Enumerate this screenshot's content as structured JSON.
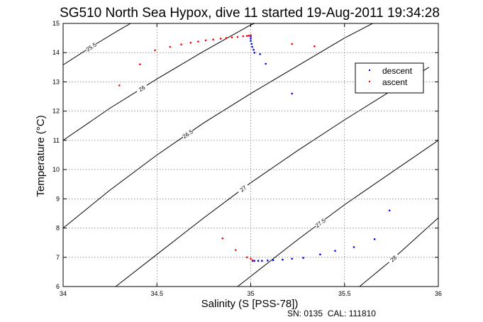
{
  "chart_data": {
    "type": "scatter",
    "title": "SG510 North Sea Hypox, dive 11 started 19-Aug-2011 19:34:28",
    "xlabel": "Salinity (S [PSS-78])",
    "ylabel": "Temperature (°C)",
    "xlim": [
      34,
      36
    ],
    "ylim": [
      6,
      15
    ],
    "xticks": [
      "34",
      "34.5",
      "35",
      "35.5",
      "36"
    ],
    "yticks": [
      "6",
      "7",
      "8",
      "9",
      "10",
      "11",
      "12",
      "13",
      "14",
      "15"
    ],
    "grid": true,
    "legend_position": "top-right",
    "footer": "SN: 0135  CAL: 111810",
    "contours": [
      {
        "label": "25.5",
        "points": [
          [
            34.0,
            13.58
          ],
          [
            34.15,
            14.2
          ],
          [
            34.3,
            14.78
          ],
          [
            34.36,
            15.0
          ]
        ]
      },
      {
        "label": "26",
        "points": [
          [
            34.0,
            11.0
          ],
          [
            34.25,
            12.1
          ],
          [
            34.5,
            13.1
          ],
          [
            34.75,
            14.05
          ],
          [
            35.0,
            14.95
          ],
          [
            35.02,
            15.0
          ]
        ]
      },
      {
        "label": "26.5",
        "points": [
          [
            34.0,
            8.0
          ],
          [
            34.25,
            9.3
          ],
          [
            34.5,
            10.5
          ],
          [
            34.75,
            11.6
          ],
          [
            35.0,
            12.6
          ],
          [
            35.25,
            13.55
          ],
          [
            35.5,
            14.5
          ],
          [
            35.65,
            15.0
          ]
        ]
      },
      {
        "label": "27",
        "points": [
          [
            34.28,
            6.0
          ],
          [
            34.5,
            7.1
          ],
          [
            34.75,
            8.35
          ],
          [
            35.0,
            9.55
          ],
          [
            35.25,
            10.65
          ],
          [
            35.5,
            11.7
          ],
          [
            35.75,
            12.7
          ],
          [
            35.95,
            13.5
          ]
        ]
      },
      {
        "label": "27.5",
        "points": [
          [
            34.93,
            6.0
          ],
          [
            35.0,
            6.35
          ],
          [
            35.25,
            7.6
          ],
          [
            35.5,
            8.8
          ],
          [
            35.75,
            9.9
          ],
          [
            36.0,
            11.0
          ]
        ]
      },
      {
        "label": "28",
        "points": [
          [
            35.58,
            6.0
          ],
          [
            35.75,
            6.9
          ],
          [
            36.0,
            8.35
          ]
        ]
      }
    ],
    "series": [
      {
        "name": "descent",
        "color": "#0000ff",
        "points": [
          [
            35.0,
            14.55
          ],
          [
            35.0,
            14.48
          ],
          [
            35.0,
            14.4
          ],
          [
            35.005,
            14.3
          ],
          [
            35.008,
            14.2
          ],
          [
            35.015,
            14.1
          ],
          [
            35.02,
            14.0
          ],
          [
            35.05,
            13.95
          ],
          [
            35.08,
            13.62
          ],
          [
            35.22,
            12.6
          ],
          [
            35.74,
            8.6
          ],
          [
            35.66,
            7.62
          ],
          [
            35.55,
            7.35
          ],
          [
            35.45,
            7.22
          ],
          [
            35.37,
            7.1
          ],
          [
            35.28,
            6.98
          ],
          [
            35.22,
            6.95
          ],
          [
            35.17,
            6.92
          ],
          [
            35.12,
            6.9
          ],
          [
            35.09,
            6.89
          ],
          [
            35.06,
            6.88
          ],
          [
            35.04,
            6.88
          ],
          [
            35.02,
            6.88
          ],
          [
            35.01,
            6.88
          ]
        ]
      },
      {
        "name": "ascent",
        "color": "#ff0000",
        "points": [
          [
            34.3,
            12.88
          ],
          [
            34.41,
            13.6
          ],
          [
            34.49,
            14.08
          ],
          [
            34.57,
            14.2
          ],
          [
            34.63,
            14.28
          ],
          [
            34.68,
            14.34
          ],
          [
            34.72,
            14.38
          ],
          [
            34.76,
            14.42
          ],
          [
            34.8,
            14.45
          ],
          [
            34.84,
            14.48
          ],
          [
            34.87,
            14.5
          ],
          [
            34.9,
            14.52
          ],
          [
            34.93,
            14.54
          ],
          [
            34.96,
            14.56
          ],
          [
            34.98,
            14.57
          ],
          [
            34.99,
            14.58
          ],
          [
            35.0,
            14.6
          ],
          [
            35.22,
            14.3
          ],
          [
            35.34,
            14.22
          ],
          [
            34.85,
            7.65
          ],
          [
            34.92,
            7.25
          ],
          [
            34.98,
            7.0
          ],
          [
            35.0,
            6.95
          ],
          [
            35.01,
            6.9
          ]
        ]
      }
    ]
  }
}
